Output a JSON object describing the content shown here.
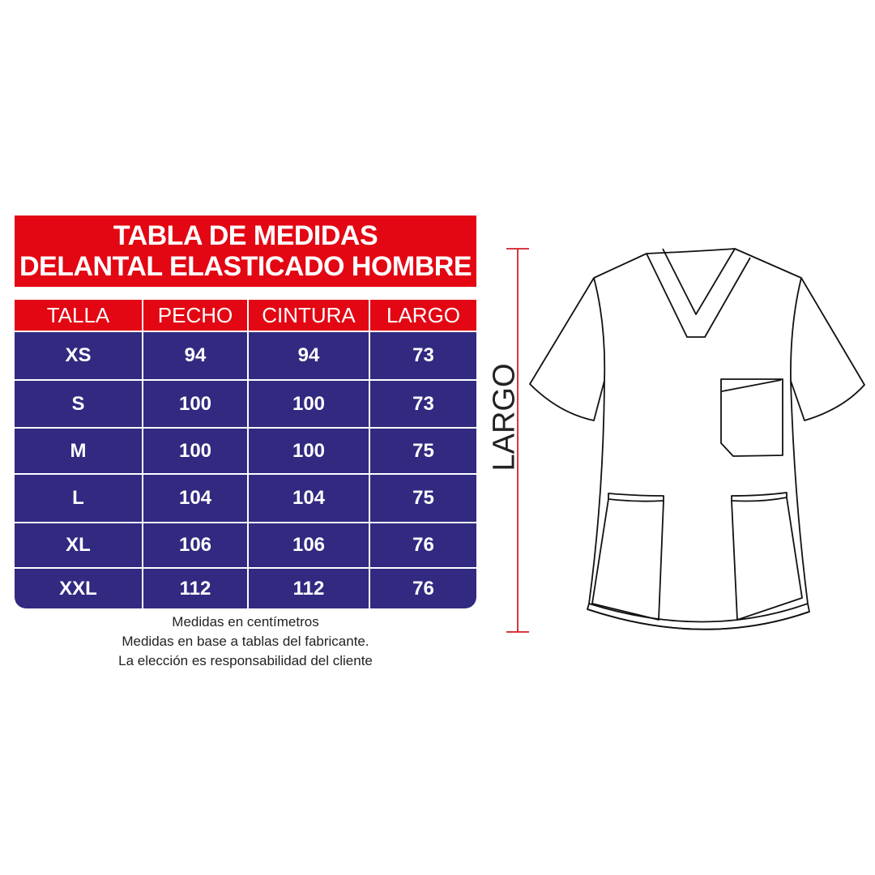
{
  "title": {
    "line1": "TABLA DE MEDIDAS",
    "line2": "DELANTAL ELASTICADO HOMBRE"
  },
  "table": {
    "headers": [
      "TALLA",
      "PECHO",
      "CINTURA",
      "LARGO"
    ],
    "rows": [
      [
        "XS",
        "94",
        "94",
        "73"
      ],
      [
        "S",
        "100",
        "100",
        "73"
      ],
      [
        "M",
        "100",
        "100",
        "75"
      ],
      [
        "L",
        "104",
        "104",
        "75"
      ],
      [
        "XL",
        "106",
        "106",
        "76"
      ],
      [
        "XXL",
        "112",
        "112",
        "76"
      ]
    ]
  },
  "notes": [
    "Medidas en centímetros",
    "Medidas en base a tablas del fabricante.",
    "La elección es responsabilidad del cliente"
  ],
  "figure": {
    "measure_label": "LARGO"
  },
  "colors": {
    "header_red": "#e30613",
    "body_blue": "#312a80",
    "measure_line": "#d0202a"
  }
}
